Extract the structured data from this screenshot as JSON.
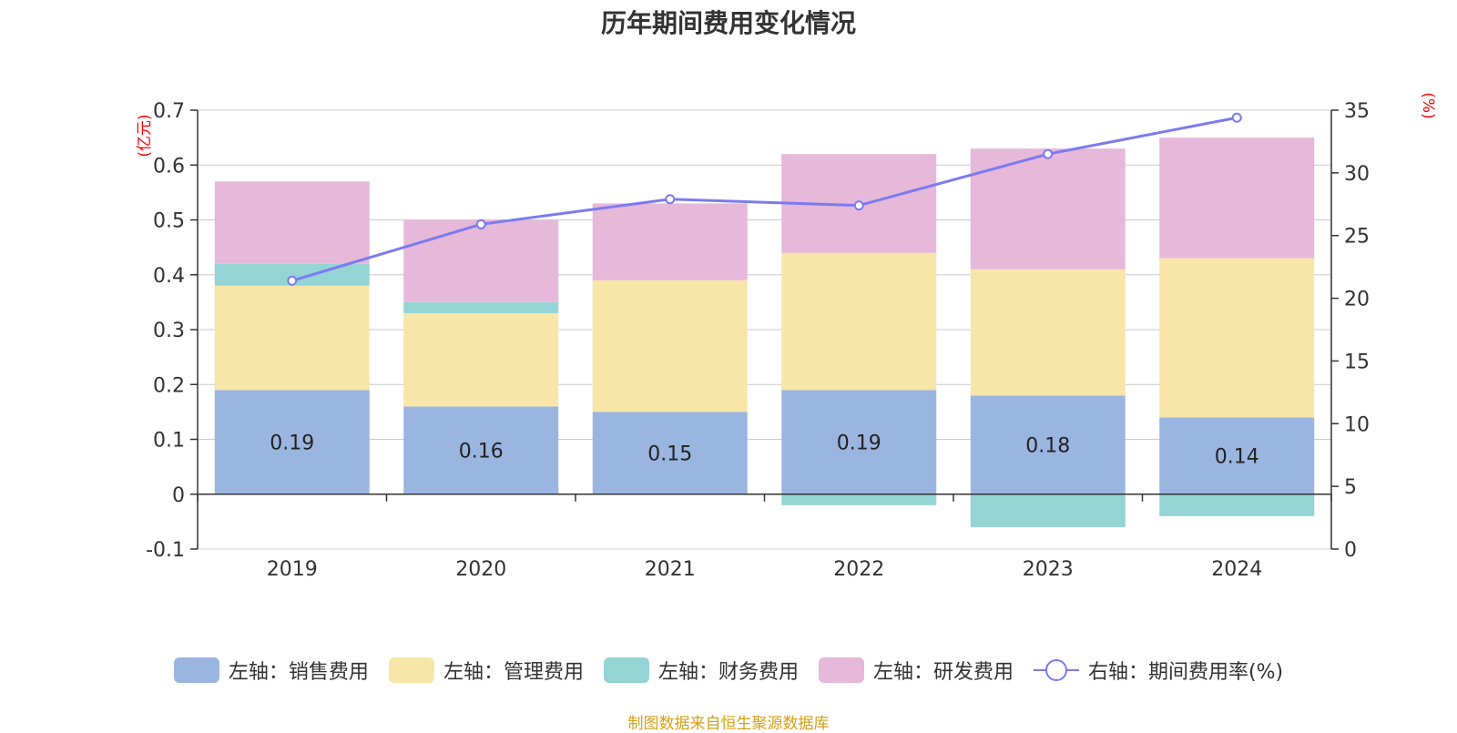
{
  "chart_data": {
    "type": "bar",
    "title": "历年期间费用变化情况",
    "categories": [
      "2019",
      "2020",
      "2021",
      "2022",
      "2023",
      "2024"
    ],
    "stacked": true,
    "left_axis": {
      "unit": "(亿元)",
      "ylim": [
        -0.1,
        0.7
      ],
      "ticks": [
        -0.1,
        0,
        0.1,
        0.2,
        0.3,
        0.4,
        0.5,
        0.6,
        0.7
      ],
      "tick_labels": [
        "-0.1",
        "0",
        "0.1",
        "0.2",
        "0.3",
        "0.4",
        "0.5",
        "0.6",
        "0.7"
      ]
    },
    "right_axis": {
      "unit": "(%)",
      "ylim": [
        0,
        35
      ],
      "ticks": [
        0,
        5,
        10,
        15,
        20,
        25,
        30,
        35
      ],
      "tick_labels": [
        "0",
        "5",
        "10",
        "15",
        "20",
        "25",
        "30",
        "35"
      ]
    },
    "series": [
      {
        "name": "左轴：销售费用",
        "type": "bar",
        "axis": "left",
        "color": "#9ab6e0",
        "values": [
          0.19,
          0.16,
          0.15,
          0.19,
          0.18,
          0.14
        ],
        "labels": [
          "0.19",
          "0.16",
          "0.15",
          "0.19",
          "0.18",
          "0.14"
        ]
      },
      {
        "name": "左轴：管理费用",
        "type": "bar",
        "axis": "left",
        "color": "#f8e6a8",
        "values": [
          0.19,
          0.17,
          0.24,
          0.25,
          0.23,
          0.29
        ]
      },
      {
        "name": "左轴：财务费用",
        "type": "bar",
        "axis": "left",
        "color": "#95d4d4",
        "values": [
          0.04,
          0.02,
          0.0,
          -0.02,
          -0.06,
          -0.04
        ]
      },
      {
        "name": "左轴：研发费用",
        "type": "bar",
        "axis": "left",
        "color": "#e6b8da",
        "values": [
          0.15,
          0.15,
          0.14,
          0.18,
          0.22,
          0.22
        ]
      },
      {
        "name": "右轴：期间费用率(%)",
        "type": "line",
        "axis": "right",
        "color": "#7b7bf0",
        "values": [
          21.4,
          25.9,
          27.9,
          27.4,
          31.5,
          34.4
        ]
      }
    ],
    "grid": true,
    "legend_position": "bottom"
  },
  "source_note": "制图数据来自恒生聚源数据库"
}
